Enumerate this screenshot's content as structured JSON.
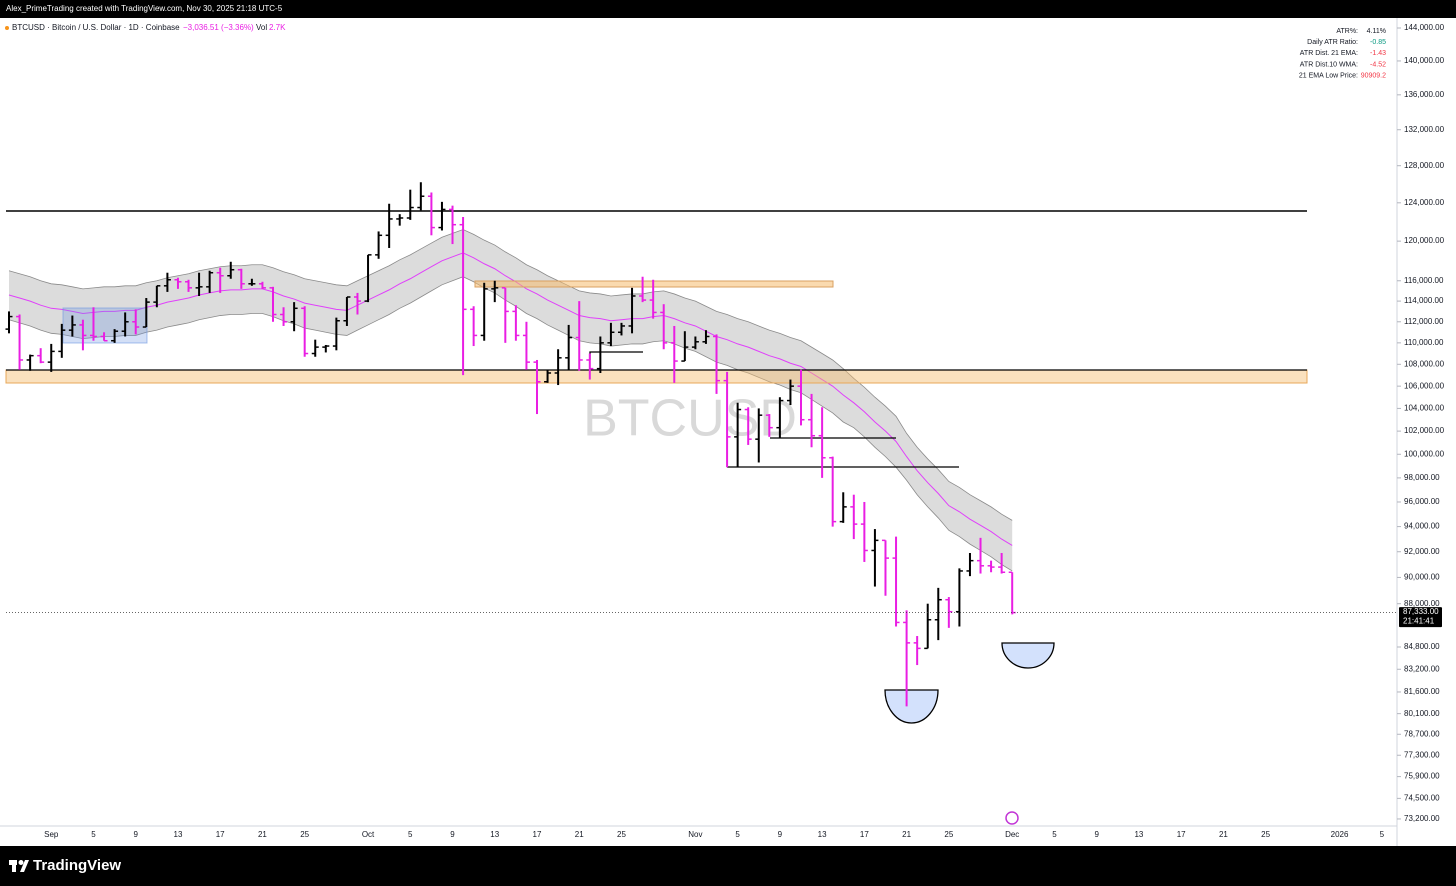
{
  "header": {
    "author_line": "Alex_PrimeTrading created with TradingView.com, Nov 30, 2025 21:18 UTC-5"
  },
  "footer": {
    "brand": "TradingView"
  },
  "indicator_table": {
    "rows": [
      {
        "label": "ATR%:",
        "value": "4.11%",
        "color": "#131722"
      },
      {
        "label": "Daily ATR Ratio:",
        "value": "-0.85",
        "color": "#089981"
      },
      {
        "label": "ATR Dist. 21 EMA:",
        "value": "-1.43",
        "color": "#f23645"
      },
      {
        "label": "ATR Dist.10 WMA:",
        "value": "-4.52",
        "color": "#f23645"
      },
      {
        "label": "21 EMA Low Price:",
        "value": "90909.2",
        "color": "#f23645"
      }
    ]
  },
  "chart_data": {
    "type": "ohlc",
    "title": "BTCUSD · Bitcoin / U.S. Dollar · 1D · Coinbase",
    "change": "−3,036.51 (−3.36%)",
    "volume_label": "Vol",
    "volume": "2.7K",
    "watermark": "BTCUSD",
    "log_scale": true,
    "grid": false,
    "up_color": "#000000",
    "down_color": "#e91ee3",
    "band_color": "#d6d6d6",
    "band_edge_color": "#8a8a8a",
    "ema_color": "#e040fb",
    "last_price": {
      "value": 87333,
      "label": "87,333.00"
    },
    "countdown": "21:41:41",
    "ylim": [
      72760,
      144990
    ],
    "yticks": [
      {
        "value": 144000,
        "label": "144,000.00"
      },
      {
        "value": 140000,
        "label": "140,000.00"
      },
      {
        "value": 136000,
        "label": "136,000.00"
      },
      {
        "value": 132000,
        "label": "132,000.00"
      },
      {
        "value": 128000,
        "label": "128,000.00"
      },
      {
        "value": 124000,
        "label": "124,000.00"
      },
      {
        "value": 120000,
        "label": "120,000.00"
      },
      {
        "value": 116000,
        "label": "116,000.00"
      },
      {
        "value": 114000,
        "label": "114,000.00"
      },
      {
        "value": 112000,
        "label": "112,000.00"
      },
      {
        "value": 110000,
        "label": "110,000.00"
      },
      {
        "value": 108000,
        "label": "108,000.00"
      },
      {
        "value": 106000,
        "label": "106,000.00"
      },
      {
        "value": 104000,
        "label": "104,000.00"
      },
      {
        "value": 102000,
        "label": "102,000.00"
      },
      {
        "value": 100000,
        "label": "100,000.00"
      },
      {
        "value": 98000,
        "label": "98,000.00"
      },
      {
        "value": 96000,
        "label": "96,000.00"
      },
      {
        "value": 94000,
        "label": "94,000.00"
      },
      {
        "value": 92000,
        "label": "92,000.00"
      },
      {
        "value": 90000,
        "label": "90,000.00"
      },
      {
        "value": 88000,
        "label": "88,000.00"
      },
      {
        "value": 84800,
        "label": "84,800.00"
      },
      {
        "value": 83200,
        "label": "83,200.00"
      },
      {
        "value": 81600,
        "label": "81,600.00"
      },
      {
        "value": 80100,
        "label": "80,100.00"
      },
      {
        "value": 78700,
        "label": "78,700.00"
      },
      {
        "value": 77300,
        "label": "77,300.00"
      },
      {
        "value": 75900,
        "label": "75,900.00"
      },
      {
        "value": 74500,
        "label": "74,500.00"
      },
      {
        "value": 73200,
        "label": "73,200.00"
      }
    ],
    "categories": [
      null,
      null,
      null,
      null,
      "Sep",
      null,
      null,
      null,
      "5",
      null,
      null,
      null,
      "9",
      null,
      null,
      null,
      "13",
      null,
      null,
      null,
      "17",
      null,
      null,
      null,
      "21",
      null,
      null,
      null,
      "25",
      null,
      null,
      null,
      null,
      null,
      "Oct",
      null,
      null,
      null,
      "5",
      null,
      null,
      null,
      "9",
      null,
      null,
      null,
      "13",
      null,
      null,
      null,
      "17",
      null,
      null,
      null,
      "21",
      null,
      null,
      null,
      "25",
      null,
      null,
      null,
      null,
      null,
      null,
      "Nov",
      null,
      null,
      null,
      "5",
      null,
      null,
      null,
      "9",
      null,
      null,
      null,
      "13",
      null,
      null,
      null,
      "17",
      null,
      null,
      null,
      "21",
      null,
      null,
      null,
      "25",
      null,
      null,
      null,
      null,
      null,
      "Dec",
      null,
      null,
      null,
      "5",
      null,
      null,
      null,
      "9",
      null,
      null,
      null,
      "13",
      null,
      null,
      null,
      "17",
      null,
      null,
      null,
      "21",
      null,
      null,
      null,
      "25",
      null,
      null,
      null,
      null,
      null,
      null,
      "2026",
      null,
      null,
      null,
      "5",
      null
    ],
    "open": [
      111300,
      112500,
      108400,
      108800,
      108200,
      109200,
      111200,
      111700,
      110700,
      110600,
      110200,
      111100,
      112000,
      111500,
      113900,
      115500,
      116100,
      115900,
      115300,
      115400,
      116800,
      116500,
      117100,
      115700,
      115700,
      115300,
      112700,
      112000,
      113300,
      109000,
      109600,
      109700,
      112100,
      114400,
      114000,
      118600,
      120600,
      122300,
      122400,
      123500,
      124700,
      121400,
      123300,
      121700,
      113200,
      110700,
      115200,
      115300,
      113000,
      110700,
      108200,
      106400,
      107200,
      108600,
      110500,
      108400,
      107600,
      110000,
      111000,
      111600,
      114500,
      114100,
      112900,
      110000,
      108300,
      109600,
      110100,
      110600,
      106500,
      101500,
      103900,
      101300,
      103400,
      102300,
      104700,
      106000,
      103000,
      101600,
      99700,
      94400,
      95600,
      94200,
      92100,
      92900,
      91500,
      86600,
      85100,
      84700,
      86800,
      88300,
      87400,
      90500,
      91300,
      90900,
      90800,
      90400,
      null,
      null,
      null,
      null,
      null,
      null,
      null,
      null,
      null,
      null,
      null,
      null,
      null,
      null,
      null,
      null,
      null,
      null,
      null,
      null,
      null,
      null,
      null,
      null,
      null,
      null,
      null,
      null,
      null,
      null,
      null,
      null,
      null,
      null,
      null,
      null
    ],
    "high": [
      113000,
      112700,
      108900,
      109500,
      109900,
      111800,
      112600,
      112200,
      113400,
      111000,
      111300,
      112900,
      113200,
      114300,
      115500,
      116800,
      116300,
      116100,
      116800,
      117000,
      117300,
      117900,
      117200,
      116200,
      115900,
      115400,
      113400,
      113900,
      113500,
      110300,
      109800,
      112400,
      114400,
      114800,
      118600,
      121000,
      123900,
      122800,
      125400,
      126200,
      125100,
      124100,
      123700,
      122500,
      113500,
      115800,
      116000,
      115300,
      113600,
      112000,
      108400,
      107500,
      109400,
      111700,
      114000,
      109000,
      110600,
      111900,
      111900,
      115300,
      116400,
      116100,
      113700,
      111600,
      111100,
      110600,
      111200,
      110800,
      107300,
      104500,
      104100,
      104000,
      103500,
      105000,
      106600,
      107500,
      105300,
      104100,
      99800,
      96800,
      96600,
      96000,
      93800,
      92900,
      93200,
      87500,
      85600,
      88000,
      89200,
      88500,
      90700,
      91900,
      93100,
      91300,
      91900,
      90400,
      null,
      null,
      null,
      null,
      null,
      null,
      null,
      null,
      null,
      null,
      null,
      null,
      null,
      null,
      null,
      null,
      null,
      null,
      null,
      null,
      null,
      null,
      null,
      null,
      null,
      null,
      null,
      null,
      null,
      null,
      null,
      null,
      null,
      null,
      null,
      null
    ],
    "low": [
      110900,
      107500,
      107400,
      108100,
      107300,
      108600,
      110600,
      109300,
      110200,
      110200,
      110000,
      110600,
      110800,
      111500,
      113400,
      114900,
      115200,
      114900,
      114500,
      114800,
      114800,
      116200,
      115200,
      115500,
      115200,
      112000,
      111600,
      111100,
      108700,
      108700,
      109100,
      109300,
      111600,
      112700,
      113900,
      118200,
      119300,
      121600,
      122200,
      123200,
      120600,
      121100,
      119700,
      107000,
      109700,
      110200,
      113900,
      110000,
      110200,
      107500,
      103500,
      106300,
      106100,
      107500,
      107400,
      106600,
      107200,
      109700,
      110700,
      110900,
      113900,
      112300,
      109400,
      106300,
      108300,
      109400,
      109900,
      105300,
      98900,
      98900,
      100800,
      99300,
      101500,
      101400,
      104300,
      102500,
      100600,
      98000,
      94000,
      94300,
      93000,
      91200,
      89300,
      88600,
      86300,
      80600,
      83500,
      84700,
      85300,
      86200,
      86300,
      90100,
      90300,
      90400,
      90300,
      87200,
      null,
      null,
      null,
      null,
      null,
      null,
      null,
      null,
      null,
      null,
      null,
      null,
      null,
      null,
      null,
      null,
      null,
      null,
      null,
      null,
      null,
      null,
      null,
      null,
      null,
      null,
      null,
      null,
      null,
      null,
      null,
      null,
      null,
      null,
      null,
      null
    ],
    "close": [
      112500,
      108400,
      108800,
      108200,
      109200,
      111200,
      111700,
      110700,
      110600,
      110200,
      111100,
      112000,
      111500,
      113900,
      115500,
      116100,
      115900,
      115300,
      115400,
      116800,
      116500,
      117100,
      115700,
      115700,
      115300,
      112700,
      112000,
      113300,
      109000,
      109600,
      109700,
      112100,
      114400,
      114000,
      118600,
      120600,
      122300,
      122400,
      123500,
      124700,
      121400,
      123300,
      121700,
      113200,
      110700,
      115200,
      115300,
      113000,
      110700,
      108200,
      106400,
      107200,
      108600,
      110500,
      108400,
      107600,
      110000,
      111000,
      111600,
      114500,
      114100,
      112900,
      110000,
      108300,
      109600,
      110100,
      110600,
      106500,
      101500,
      103900,
      101300,
      103400,
      102300,
      104700,
      106000,
      103000,
      101600,
      99700,
      94400,
      95600,
      94200,
      92100,
      92900,
      91500,
      86600,
      85100,
      84700,
      86800,
      88300,
      87400,
      90500,
      91300,
      90900,
      90800,
      90400,
      87333,
      null,
      null,
      null,
      null,
      null,
      null,
      null,
      null,
      null,
      null,
      null,
      null,
      null,
      null,
      null,
      null,
      null,
      null,
      null,
      null,
      null,
      null,
      null,
      null,
      null,
      null,
      null,
      null,
      null,
      null,
      null,
      null,
      null,
      null,
      null,
      null
    ],
    "ema_band": {
      "upper": [
        117000,
        116700,
        116400,
        116000,
        115700,
        115600,
        115400,
        115200,
        115300,
        115400,
        115400,
        115500,
        115500,
        115800,
        116000,
        116300,
        116500,
        116700,
        117000,
        117200,
        117400,
        117500,
        117500,
        117600,
        117600,
        117300,
        116900,
        116600,
        116200,
        116000,
        115800,
        115600,
        115500,
        116000,
        116500,
        117000,
        117500,
        118100,
        118600,
        119200,
        119800,
        120400,
        120800,
        121200,
        120700,
        120100,
        119600,
        118900,
        118300,
        117600,
        117100,
        116500,
        116000,
        115500,
        115000,
        114800,
        114700,
        114500,
        114600,
        114700,
        114700,
        114900,
        115000,
        114700,
        114300,
        114000,
        113500,
        113000,
        112700,
        112300,
        112000,
        111600,
        111200,
        110900,
        110500,
        110200,
        109600,
        109000,
        108400,
        107600,
        106700,
        105900,
        105000,
        104200,
        103300,
        101800,
        100600,
        99600,
        98700,
        97700,
        97200,
        96600,
        96100,
        95600,
        95000,
        94500,
        null,
        null,
        null,
        null,
        null,
        null,
        null,
        null,
        null,
        null,
        null,
        null,
        null,
        null,
        null,
        null,
        null,
        null,
        null,
        null,
        null,
        null,
        null,
        null,
        null,
        null,
        null,
        null,
        null,
        null,
        null,
        null,
        null,
        null,
        null,
        null
      ],
      "middle": [
        114600,
        114300,
        114000,
        113600,
        113300,
        113200,
        113000,
        112800,
        112900,
        113000,
        113000,
        113100,
        113100,
        113400,
        113600,
        113900,
        114100,
        114300,
        114600,
        114800,
        115000,
        115100,
        115100,
        115200,
        115200,
        114900,
        114500,
        114200,
        113800,
        113600,
        113400,
        113200,
        113100,
        113600,
        114100,
        114600,
        115100,
        115700,
        116200,
        116800,
        117400,
        118000,
        118400,
        118800,
        118300,
        117700,
        117200,
        116500,
        115900,
        115200,
        114700,
        114100,
        113600,
        113100,
        112600,
        112400,
        112300,
        112100,
        112200,
        112300,
        112300,
        112500,
        112600,
        112300,
        111900,
        111600,
        111100,
        110600,
        110300,
        109900,
        109600,
        109200,
        108800,
        108500,
        108100,
        107800,
        107200,
        106600,
        106000,
        105200,
        104500,
        103700,
        102800,
        102000,
        101100,
        99800,
        98600,
        97600,
        96700,
        95700,
        95200,
        94600,
        94100,
        93600,
        93000,
        92500,
        null,
        null,
        null,
        null,
        null,
        null,
        null,
        null,
        null,
        null,
        null,
        null,
        null,
        null,
        null,
        null,
        null,
        null,
        null,
        null,
        null,
        null,
        null,
        null,
        null,
        null,
        null,
        null,
        null,
        null,
        null,
        null,
        null,
        null,
        null,
        null
      ],
      "lower": [
        112200,
        111900,
        111600,
        111200,
        110900,
        110800,
        110600,
        110400,
        110500,
        110600,
        110600,
        110700,
        110700,
        111000,
        111200,
        111500,
        111700,
        111900,
        112200,
        112400,
        112600,
        112700,
        112700,
        112800,
        112800,
        112500,
        112100,
        111800,
        111400,
        111200,
        111000,
        110800,
        110700,
        111200,
        111700,
        112200,
        112700,
        113300,
        113800,
        114400,
        115000,
        115600,
        116000,
        116400,
        115900,
        115300,
        114800,
        114100,
        113500,
        112800,
        112300,
        111700,
        111200,
        110700,
        110200,
        110000,
        109900,
        109700,
        109800,
        109900,
        109900,
        110100,
        110200,
        109900,
        109500,
        109200,
        108700,
        108200,
        107900,
        107500,
        107200,
        106800,
        106400,
        106100,
        105700,
        105400,
        104800,
        104200,
        103600,
        102800,
        102300,
        101500,
        100600,
        99800,
        98900,
        97800,
        96600,
        95600,
        94700,
        93700,
        93200,
        92600,
        92100,
        91600,
        91000,
        90500,
        null,
        null,
        null,
        null,
        null,
        null,
        null,
        null,
        null,
        null,
        null,
        null,
        null,
        null,
        null,
        null,
        null,
        null,
        null,
        null,
        null,
        null,
        null,
        null,
        null,
        null,
        null,
        null,
        null,
        null,
        null,
        null,
        null,
        null,
        null,
        null
      ]
    }
  }
}
